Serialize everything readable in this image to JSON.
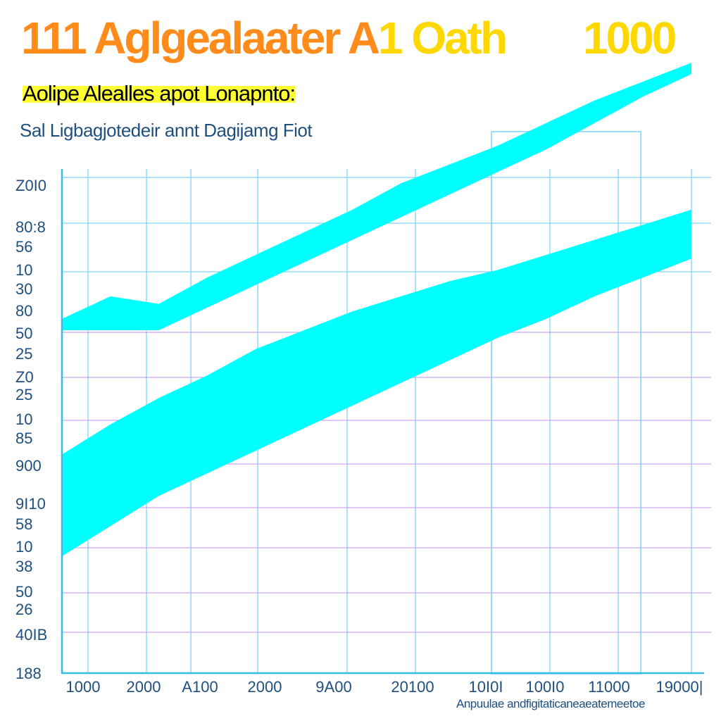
{
  "header": {
    "title_part1": "111 Aglgealaater A",
    "title_part2": "1 Oath",
    "title_value": "1000",
    "subtitle": "Aolipe Alealles apot Lonapnto:",
    "chart_name": "Sal  Ligbagjotedeir annt Dagijamg Fiot",
    "footer_label": "Anpuulae andfigitaticaneaeatemeetoe"
  },
  "colors": {
    "band": "#00ffff",
    "grid_blue": "#7fd4f5",
    "grid_purple": "#c9a6f0",
    "axis": "#33bde8",
    "title_orange": "#ff8c1a",
    "title_yellow": "#ffd800"
  },
  "chart_data": {
    "type": "area",
    "title": "111 Aglgealaater A1 Oath",
    "subtitle": "Aolipe Alealles apot Lonapnto:",
    "xlabel": "Anpuulae andfigitaticaneaeatemeetoe",
    "ylabel": "",
    "grid": true,
    "legend": "none",
    "y_tick_labels": [
      "Z0I0",
      "80:8",
      "56",
      "10",
      "30",
      "80",
      "50",
      "25",
      "Z0",
      "25",
      "10",
      "85",
      "900",
      "9I10",
      "58",
      "10",
      "38",
      "50",
      "26",
      "40IB",
      "188"
    ],
    "x_tick_labels": [
      "1000",
      "2000",
      "A100",
      "2000",
      "9A00",
      "20100",
      "10I0I",
      "100I0",
      "11000",
      "19000|"
    ],
    "x": [
      0,
      1,
      2,
      3,
      4,
      5,
      6,
      7,
      8,
      9,
      10,
      11,
      12,
      13
    ],
    "ylim": [
      0,
      100
    ],
    "series": [
      {
        "upper": [
          63,
          69,
          67,
          74,
          80,
          86,
          92,
          99,
          104,
          109,
          115,
          121,
          126,
          131
        ],
        "lower": [
          60,
          60,
          60,
          66,
          72,
          78,
          84,
          90,
          96,
          102,
          108,
          115,
          122,
          128
        ]
      },
      {
        "upper": [
          27,
          35,
          42,
          48,
          55,
          60,
          65,
          69,
          73,
          76,
          80,
          84,
          88,
          92
        ],
        "lower": [
          0,
          8,
          16,
          22,
          28,
          34,
          40,
          46,
          52,
          58,
          63,
          69,
          74,
          79
        ]
      }
    ]
  }
}
